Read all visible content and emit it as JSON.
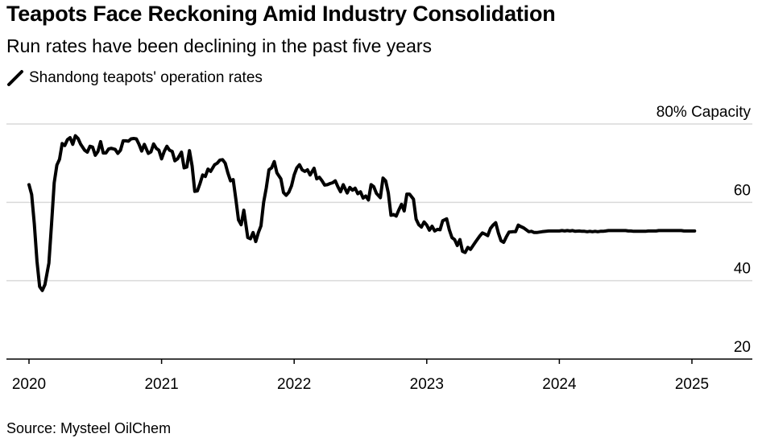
{
  "header": {
    "title": "Teapots Face Reckoning Amid Industry Consolidation",
    "subtitle": "Run rates have been declining in the past five years"
  },
  "footer": {
    "source": "Source: Mysteel OilChem"
  },
  "colors": {
    "line": "#000000",
    "gridline": "#d9d9d9",
    "axis": "#000000",
    "background": "#ffffff"
  },
  "chart_data": {
    "type": "line",
    "title": "Teapots Face Reckoning Amid Industry Consolidation",
    "subtitle": "Run rates have been declining in the past five years",
    "xlabel": "",
    "ylabel": "",
    "y_unit_label": "% Capacity",
    "y_axis_position": "right",
    "ylim": [
      20,
      80
    ],
    "y_ticks": [
      20,
      40,
      60,
      80
    ],
    "y_tick_labels": [
      "20",
      "40",
      "60",
      "80% Capacity"
    ],
    "xlim": [
      2020,
      2025.45
    ],
    "x_ticks": [
      2020,
      2021,
      2022,
      2023,
      2024,
      2025
    ],
    "x_tick_labels": [
      "2020",
      "2021",
      "2022",
      "2023",
      "2024",
      "2025"
    ],
    "grid": true,
    "legend_position": "top-left",
    "series": [
      {
        "name": "Shandong teapots' operation rates",
        "x": [
          2020.0,
          2020.02,
          2020.04,
          2020.06,
          2020.08,
          2020.1,
          2020.12,
          2020.15,
          2020.17,
          2020.19,
          2020.21,
          2020.23,
          2020.25,
          2020.27,
          2020.29,
          2020.31,
          2020.33,
          2020.35,
          2020.37,
          2020.39,
          2020.42,
          2020.44,
          2020.46,
          2020.48,
          2020.5,
          2020.52,
          2020.54,
          2020.56,
          2020.58,
          2020.6,
          2020.62,
          2020.65,
          2020.67,
          2020.69,
          2020.71,
          2020.73,
          2020.75,
          2020.77,
          2020.79,
          2020.81,
          2020.83,
          2020.85,
          2020.87,
          2020.9,
          2020.92,
          2020.94,
          2020.96,
          2020.98,
          2021.0,
          2021.02,
          2021.04,
          2021.06,
          2021.08,
          2021.1,
          2021.12,
          2021.15,
          2021.17,
          2021.19,
          2021.21,
          2021.23,
          2021.25,
          2021.27,
          2021.29,
          2021.31,
          2021.33,
          2021.35,
          2021.37,
          2021.4,
          2021.42,
          2021.44,
          2021.46,
          2021.48,
          2021.5,
          2021.52,
          2021.54,
          2021.56,
          2021.58,
          2021.6,
          2021.62,
          2021.65,
          2021.67,
          2021.69,
          2021.71,
          2021.73,
          2021.75,
          2021.77,
          2021.79,
          2021.81,
          2021.83,
          2021.85,
          2021.87,
          2021.9,
          2021.92,
          2021.94,
          2021.96,
          2021.98,
          2022.0,
          2022.02,
          2022.04,
          2022.06,
          2022.08,
          2022.1,
          2022.12,
          2022.15,
          2022.17,
          2022.19,
          2022.21,
          2022.23,
          2022.25,
          2022.27,
          2022.29,
          2022.31,
          2022.33,
          2022.35,
          2022.37,
          2022.4,
          2022.42,
          2022.44,
          2022.46,
          2022.48,
          2022.5,
          2022.52,
          2022.54,
          2022.56,
          2022.58,
          2022.6,
          2022.62,
          2022.65,
          2022.67,
          2022.69,
          2022.71,
          2022.73,
          2022.75,
          2022.77,
          2022.79,
          2022.81,
          2022.83,
          2022.85,
          2022.87,
          2022.9,
          2022.92,
          2022.94,
          2022.96,
          2022.98,
          2023.0,
          2023.02,
          2023.04,
          2023.06,
          2023.08,
          2023.1,
          2023.12,
          2023.15,
          2023.17,
          2023.19,
          2023.21,
          2023.23,
          2023.25,
          2023.27,
          2023.29,
          2023.31,
          2023.33,
          2023.35,
          2023.37,
          2023.4,
          2023.42,
          2023.44,
          2023.46,
          2023.48,
          2023.5,
          2023.52,
          2023.54,
          2023.56,
          2023.58,
          2023.6,
          2023.62,
          2023.65,
          2023.67,
          2023.69,
          2023.71,
          2023.73,
          2023.75,
          2023.77,
          2023.79,
          2023.81,
          2023.83,
          2023.85,
          2023.87,
          2023.9,
          2023.92,
          2023.94,
          2023.96,
          2023.98,
          2024.0,
          2024.02,
          2024.04,
          2024.06,
          2024.08,
          2024.1,
          2024.12,
          2024.15,
          2024.17,
          2024.19,
          2024.21,
          2024.23,
          2024.25,
          2024.27,
          2024.29,
          2024.31,
          2024.33,
          2024.35,
          2024.37,
          2024.4,
          2024.42,
          2024.44,
          2024.46,
          2024.48,
          2024.5,
          2024.52,
          2024.54,
          2024.56,
          2024.58,
          2024.6,
          2024.62,
          2024.65,
          2024.67,
          2024.69,
          2024.71,
          2024.73,
          2024.75,
          2024.77,
          2024.79,
          2024.81,
          2024.83,
          2024.85,
          2024.87,
          2024.9,
          2024.92,
          2024.94,
          2024.96,
          2024.98,
          2025.0,
          2025.02
        ],
        "values": [
          64.5,
          62.0,
          54.5,
          45.0,
          38.5,
          37.5,
          39.0,
          44.5,
          54.5,
          65.0,
          69.5,
          71.0,
          75.0,
          74.5,
          76.0,
          76.5,
          74.8,
          77.0,
          76.3,
          74.8,
          73.3,
          72.8,
          74.3,
          74.1,
          72.0,
          73.0,
          75.5,
          72.6,
          72.6,
          73.6,
          73.8,
          73.5,
          72.5,
          73.3,
          75.7,
          75.7,
          75.6,
          76.2,
          76.3,
          76.2,
          74.8,
          73.1,
          74.8,
          72.5,
          72.9,
          74.9,
          73.8,
          73.3,
          71.1,
          73.0,
          74.3,
          73.3,
          73.0,
          70.6,
          71.1,
          72.8,
          68.8,
          69.0,
          73.2,
          69.3,
          62.8,
          62.9,
          64.8,
          67.0,
          66.6,
          68.5,
          67.9,
          69.6,
          70.0,
          70.8,
          70.9,
          70.0,
          67.5,
          65.5,
          65.8,
          60.8,
          55.5,
          54.3,
          58.0,
          51.0,
          50.7,
          52.3,
          50.0,
          52.3,
          54.0,
          60.0,
          63.7,
          68.3,
          68.8,
          70.4,
          67.5,
          66.0,
          62.5,
          61.8,
          62.6,
          64.2,
          67.0,
          68.8,
          69.6,
          68.3,
          67.9,
          68.3,
          67.0,
          68.7,
          66.0,
          66.4,
          65.5,
          64.4,
          64.5,
          64.8,
          65.0,
          65.5,
          64.0,
          62.7,
          64.5,
          62.4,
          63.8,
          63.1,
          63.6,
          62.2,
          62.7,
          61.1,
          61.6,
          60.6,
          64.5,
          64.0,
          62.3,
          61.2,
          66.2,
          65.5,
          62.4,
          56.7,
          56.9,
          56.5,
          58.1,
          59.5,
          57.8,
          62.1,
          62.1,
          60.8,
          55.7,
          54.3,
          53.7,
          55.0,
          54.2,
          52.9,
          53.9,
          52.7,
          53.1,
          53.0,
          55.3,
          55.8,
          53.0,
          51.0,
          50.5,
          49.0,
          50.5,
          47.5,
          47.2,
          48.5,
          48.0,
          49.0,
          50.0,
          51.4,
          52.2,
          51.9,
          51.5,
          53.3,
          54.2,
          54.8,
          52.2,
          50.2,
          49.8,
          51.2,
          52.4,
          52.5,
          52.5,
          54.2,
          53.8,
          53.5,
          53.0,
          52.5,
          52.6,
          52.3,
          52.3,
          52.4,
          52.5,
          52.6,
          52.7,
          52.7,
          52.7,
          52.7,
          52.7,
          52.8,
          52.7,
          52.8,
          52.7,
          52.8,
          52.6,
          52.7,
          52.6,
          52.6,
          52.5,
          52.6,
          52.5,
          52.6,
          52.5,
          52.6,
          52.6,
          52.7,
          52.8,
          52.8,
          52.8,
          52.8,
          52.8,
          52.8,
          52.8,
          52.7,
          52.7,
          52.6,
          52.6,
          52.6,
          52.6,
          52.6,
          52.7,
          52.7,
          52.7,
          52.7,
          52.8,
          52.8,
          52.8,
          52.8,
          52.8,
          52.8,
          52.8,
          52.8,
          52.8,
          52.7,
          52.7,
          52.7,
          52.7,
          52.7
        ]
      }
    ]
  }
}
